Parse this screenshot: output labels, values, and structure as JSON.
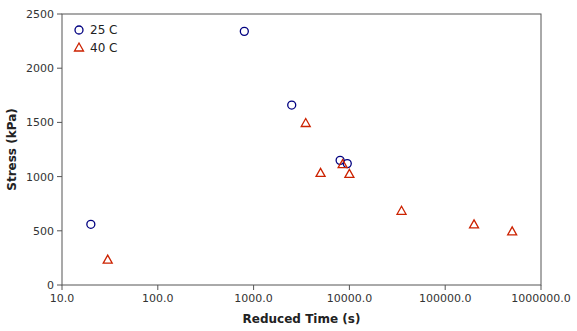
{
  "chart_data": {
    "type": "scatter",
    "xlabel": "Reduced Time (s)",
    "ylabel": "Stress (kPa)",
    "log": "x",
    "xlim": [
      10.0,
      1000000.0
    ],
    "ylim": [
      0,
      2500
    ],
    "xticks": [
      {
        "value": 10,
        "label": "10.0"
      },
      {
        "value": 100,
        "label": "100.0"
      },
      {
        "value": 1000,
        "label": "1000.0"
      },
      {
        "value": 10000,
        "label": "10000.0"
      },
      {
        "value": 100000,
        "label": "100000.0"
      },
      {
        "value": 1000000,
        "label": "1000000.0"
      }
    ],
    "yticks": [
      0,
      500,
      1000,
      1500,
      2000,
      2500
    ],
    "grid": false,
    "legend": "upper left",
    "series": [
      {
        "name": "25 C",
        "color": "#000080",
        "marker": "circle",
        "x": [
          20,
          800,
          2500,
          8000,
          9500
        ],
        "values": [
          560,
          2340,
          1660,
          1150,
          1120
        ]
      },
      {
        "name": "40 C",
        "color": "#cc2200",
        "marker": "triangle",
        "x": [
          30,
          3500,
          5000,
          8500,
          10000,
          35000,
          200000,
          500000
        ],
        "values": [
          230,
          1490,
          1030,
          1110,
          1020,
          680,
          555,
          490
        ]
      }
    ]
  }
}
